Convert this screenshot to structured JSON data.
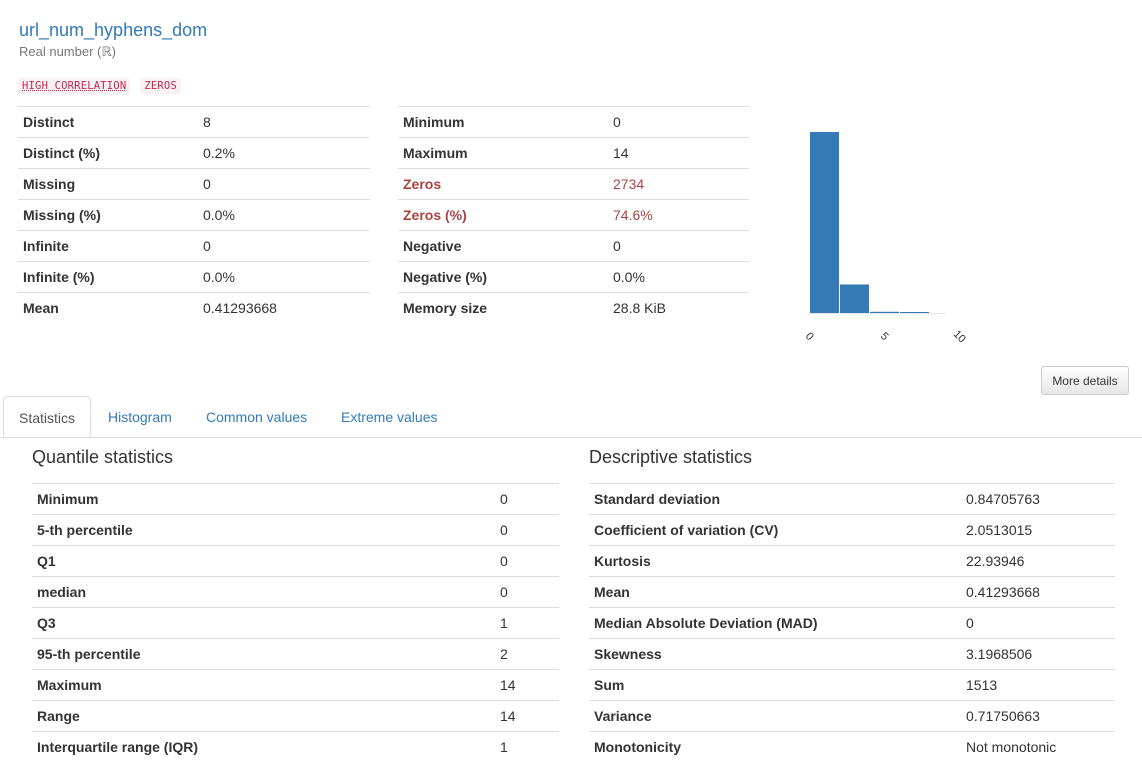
{
  "header": {
    "title": "url_num_hyphens_dom",
    "subtitle": "Real number (ℝ)",
    "badges": [
      "HIGH CORRELATION",
      "ZEROS"
    ]
  },
  "stats_left": [
    {
      "label": "Distinct",
      "value": "8"
    },
    {
      "label": "Distinct (%)",
      "value": "0.2%"
    },
    {
      "label": "Missing",
      "value": "0"
    },
    {
      "label": "Missing (%)",
      "value": "0.0%"
    },
    {
      "label": "Infinite",
      "value": "0"
    },
    {
      "label": "Infinite (%)",
      "value": "0.0%"
    },
    {
      "label": "Mean",
      "value": "0.41293668"
    }
  ],
  "stats_right": [
    {
      "label": "Minimum",
      "value": "0"
    },
    {
      "label": "Maximum",
      "value": "14"
    },
    {
      "label": "Zeros",
      "value": "2734"
    },
    {
      "label": "Zeros (%)",
      "value": "74.6%"
    },
    {
      "label": "Negative",
      "value": "0"
    },
    {
      "label": "Negative (%)",
      "value": "0.0%"
    },
    {
      "label": "Memory size",
      "value": "28.8 KiB"
    }
  ],
  "chart_data": {
    "type": "bar",
    "categories": [
      "0-2",
      "2-4",
      "4-6",
      "6-8"
    ],
    "values": [
      2734,
      430,
      18,
      4
    ],
    "xticks": [
      "0",
      "5",
      "10"
    ],
    "bar_color": "#337ab7"
  },
  "more_details_label": "More details",
  "tabs": [
    "Statistics",
    "Histogram",
    "Common values",
    "Extreme values"
  ],
  "quantile": {
    "title": "Quantile statistics",
    "rows": [
      {
        "label": "Minimum",
        "value": "0"
      },
      {
        "label": "5-th percentile",
        "value": "0"
      },
      {
        "label": "Q1",
        "value": "0"
      },
      {
        "label": "median",
        "value": "0"
      },
      {
        "label": "Q3",
        "value": "1"
      },
      {
        "label": "95-th percentile",
        "value": "2"
      },
      {
        "label": "Maximum",
        "value": "14"
      },
      {
        "label": "Range",
        "value": "14"
      },
      {
        "label": "Interquartile range (IQR)",
        "value": "1"
      }
    ]
  },
  "descriptive": {
    "title": "Descriptive statistics",
    "rows": [
      {
        "label": "Standard deviation",
        "value": "0.84705763"
      },
      {
        "label": "Coefficient of variation (CV)",
        "value": "2.0513015"
      },
      {
        "label": "Kurtosis",
        "value": "22.93946"
      },
      {
        "label": "Mean",
        "value": "0.41293668"
      },
      {
        "label": "Median Absolute Deviation (MAD)",
        "value": "0"
      },
      {
        "label": "Skewness",
        "value": "3.1968506"
      },
      {
        "label": "Sum",
        "value": "1513"
      },
      {
        "label": "Variance",
        "value": "0.71750663"
      },
      {
        "label": "Monotonicity",
        "value": "Not monotonic"
      }
    ]
  }
}
